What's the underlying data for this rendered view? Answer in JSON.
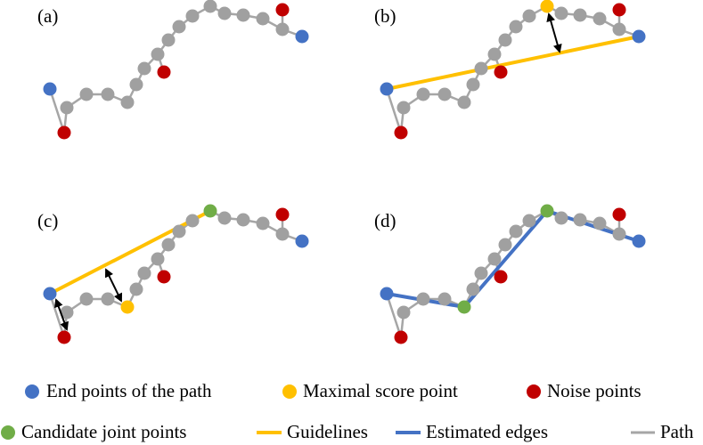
{
  "panels": [
    {
      "label": "(a)"
    },
    {
      "label": "(b)"
    },
    {
      "label": "(c)"
    },
    {
      "label": "(d)"
    }
  ],
  "legend": [
    "End points of the path",
    "Maximal score point",
    "Noise points",
    "Candidate joint points",
    "Guidelines",
    "Estimated edges",
    "Path"
  ]
}
